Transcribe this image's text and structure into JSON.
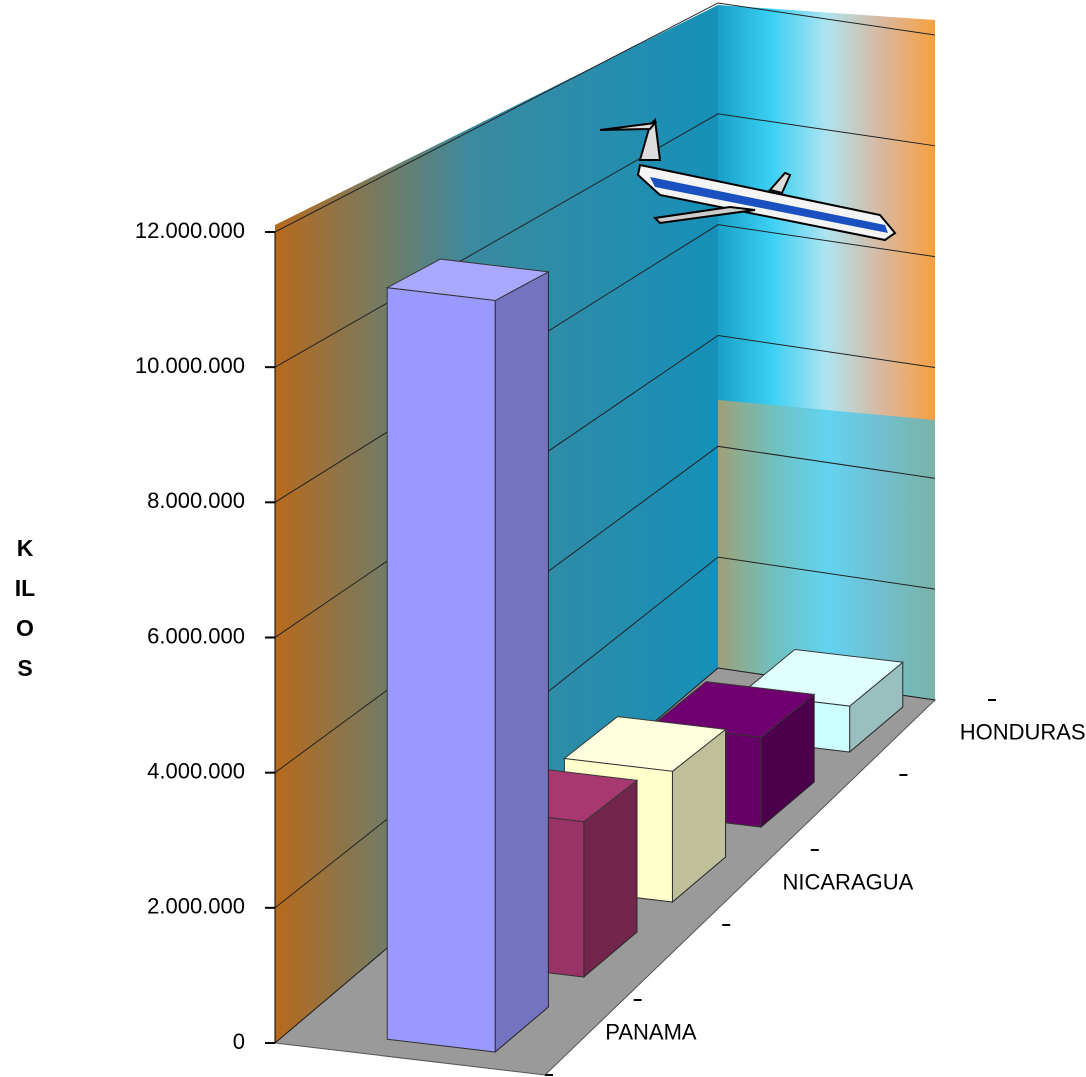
{
  "chart_data": {
    "type": "bar3d",
    "ylabel": "KILOS",
    "categories": [
      "PANAMA",
      null,
      "NICARAGUA",
      null,
      "HONDURAS"
    ],
    "values": [
      11200000,
      2400000,
      2100000,
      1500000,
      800000
    ],
    "colors": [
      "#9999ff",
      "#993366",
      "#ffffcc",
      "#660066",
      "#ccffff"
    ],
    "ylim": [
      0,
      12000000
    ],
    "yticks": [
      0,
      {
        "value": 2000000,
        "label": "2.000.000"
      },
      {
        "value": 4000000,
        "label": "4.000.000"
      },
      {
        "value": 6000000,
        "label": "6.000.000"
      },
      {
        "value": 8000000,
        "label": "8.000.000"
      },
      {
        "value": 10000000,
        "label": "10.000.000"
      },
      {
        "value": 12000000,
        "label": "12.000.000"
      }
    ],
    "grid": true
  }
}
